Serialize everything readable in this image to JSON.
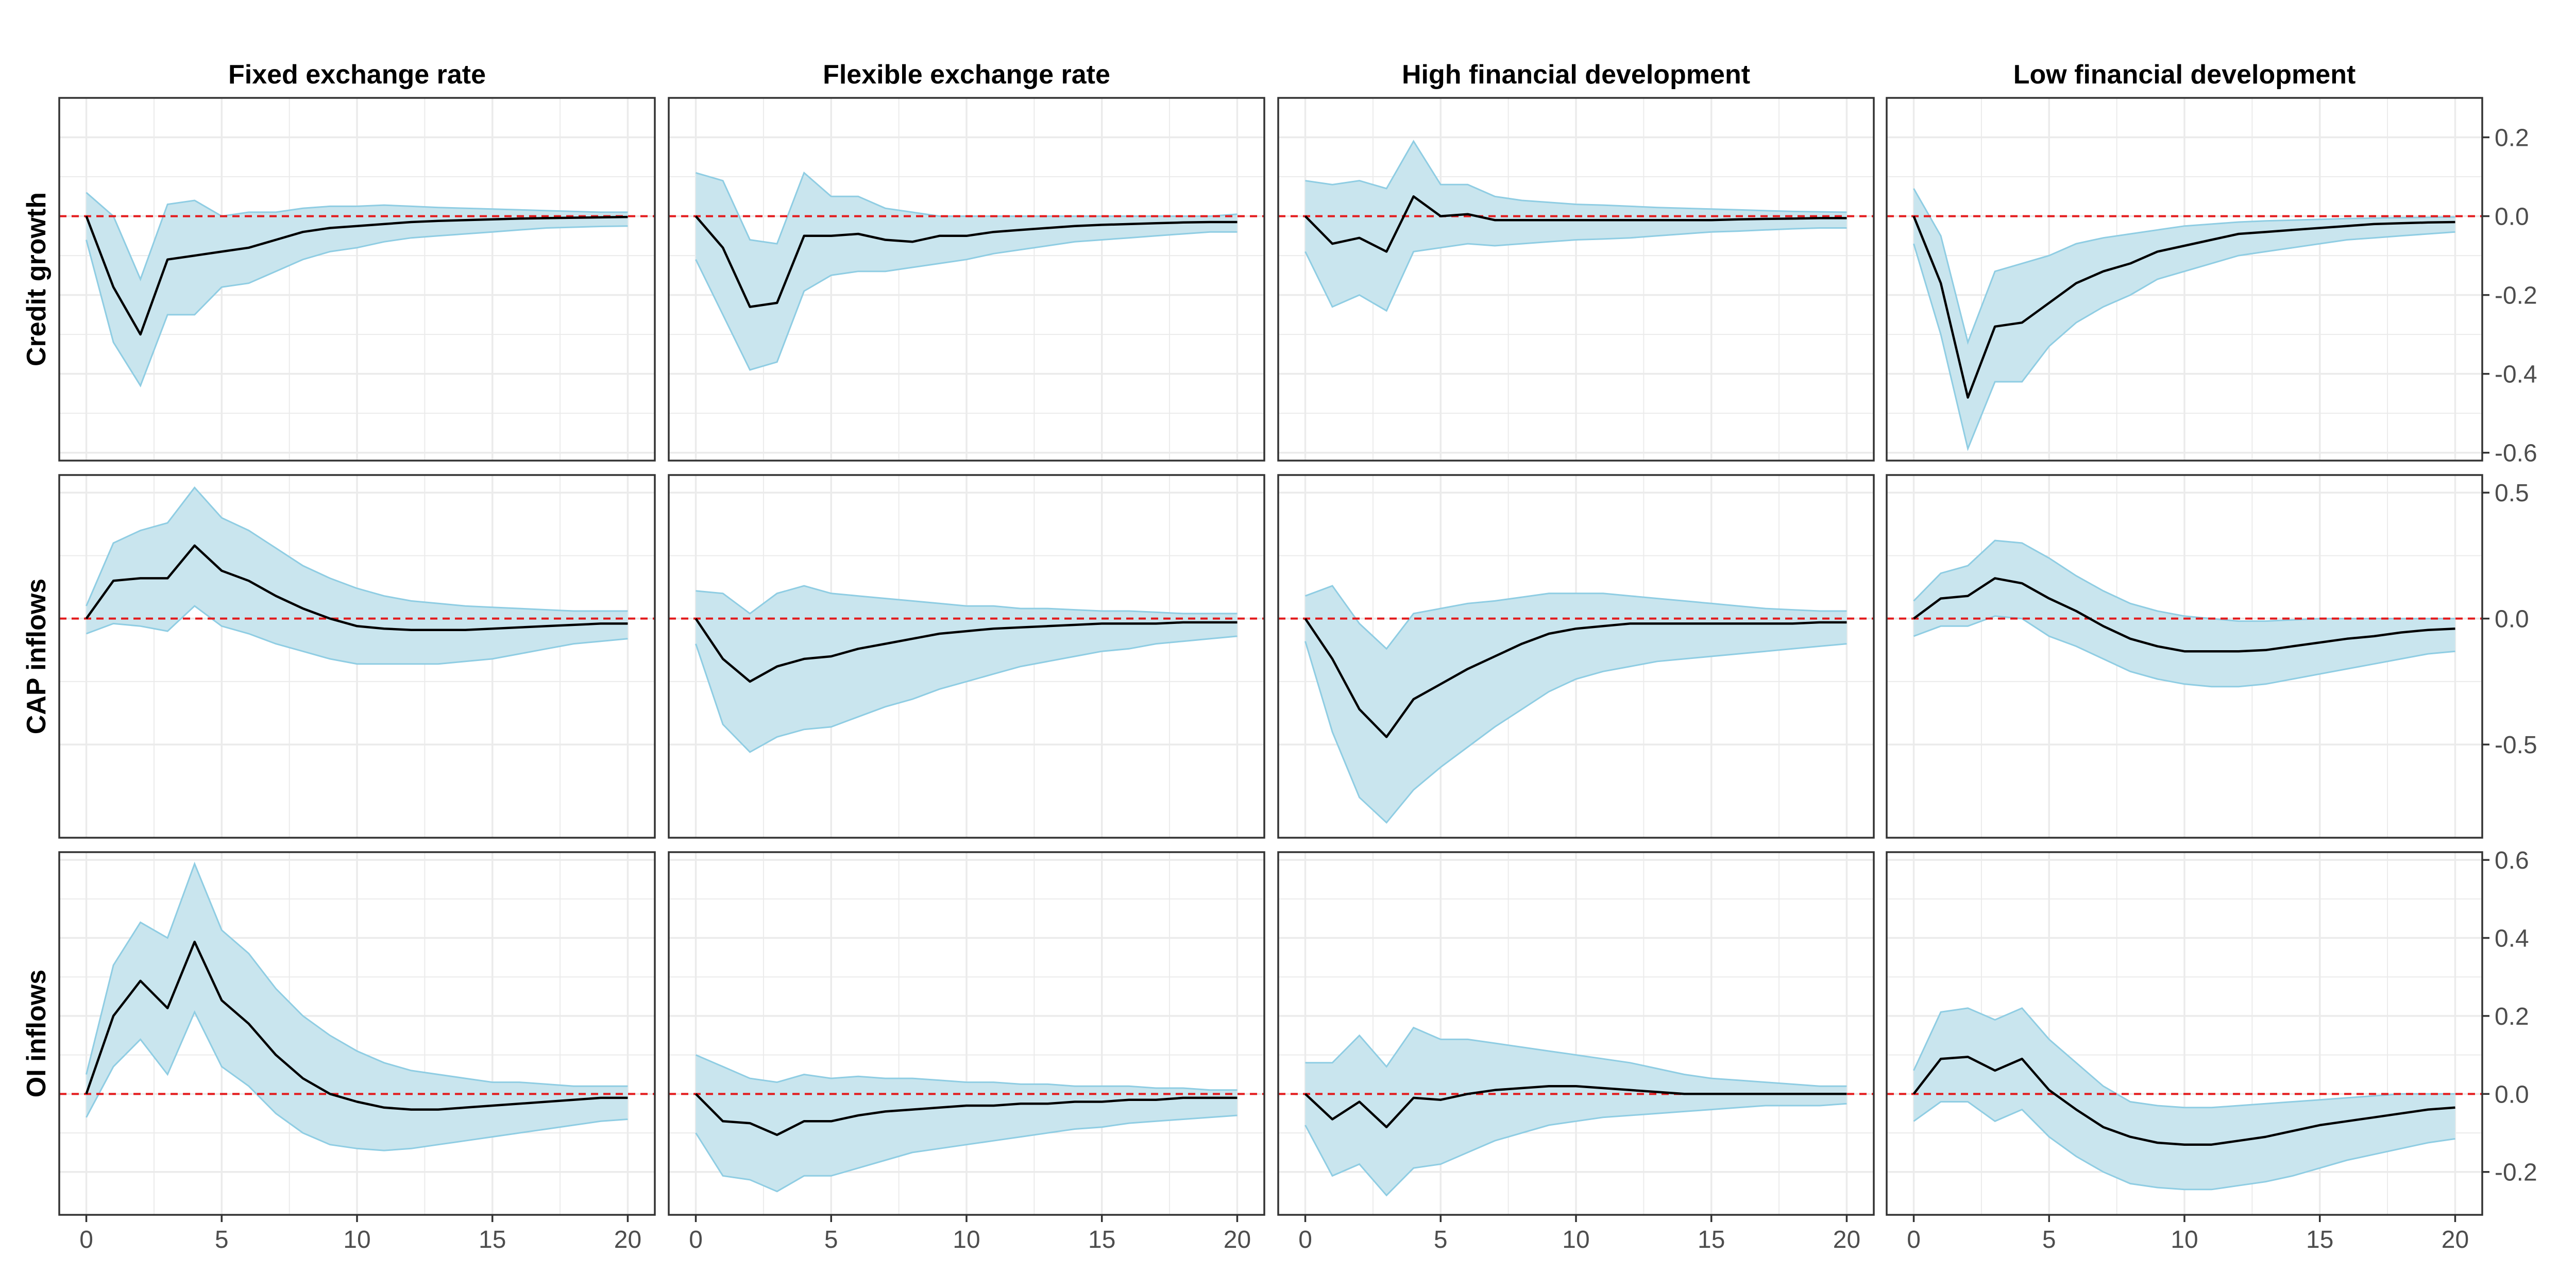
{
  "chart_data": {
    "type": "line",
    "column_titles": [
      "Fixed exchange rate",
      "Flexible exchange rate",
      "High financial development",
      "Low financial development"
    ],
    "row_titles": [
      "Credit growth",
      "CAP inflows",
      "OI inflows"
    ],
    "x_ticks": [
      0,
      5,
      10,
      15,
      20
    ],
    "xlim": [
      -1,
      21
    ],
    "rows": [
      {
        "ylim": [
          -0.62,
          0.3
        ],
        "y_ticks": [
          0.2,
          0.0,
          -0.2,
          -0.4,
          -0.6
        ],
        "y_tick_labels": [
          "0.2",
          "0.0",
          "-0.2",
          "-0.4",
          "-0.6"
        ],
        "panels": [
          {
            "mean": [
              0.0,
              -0.18,
              -0.3,
              -0.11,
              -0.1,
              -0.09,
              -0.08,
              -0.06,
              -0.04,
              -0.03,
              -0.025,
              -0.02,
              -0.015,
              -0.012,
              -0.01,
              -0.008,
              -0.006,
              -0.005,
              -0.004,
              -0.003,
              -0.002
            ],
            "upper": [
              0.06,
              0.0,
              -0.16,
              0.03,
              0.04,
              0.0,
              0.01,
              0.01,
              0.02,
              0.025,
              0.025,
              0.028,
              0.025,
              0.022,
              0.02,
              0.018,
              0.016,
              0.014,
              0.012,
              0.01,
              0.01
            ],
            "lower": [
              -0.06,
              -0.32,
              -0.43,
              -0.25,
              -0.25,
              -0.18,
              -0.17,
              -0.14,
              -0.11,
              -0.09,
              -0.08,
              -0.065,
              -0.055,
              -0.05,
              -0.045,
              -0.04,
              -0.035,
              -0.03,
              -0.028,
              -0.026,
              -0.025
            ]
          },
          {
            "mean": [
              0.0,
              -0.08,
              -0.23,
              -0.22,
              -0.05,
              -0.05,
              -0.045,
              -0.06,
              -0.065,
              -0.05,
              -0.05,
              -0.04,
              -0.035,
              -0.03,
              -0.025,
              -0.022,
              -0.02,
              -0.018,
              -0.016,
              -0.015,
              -0.015
            ],
            "upper": [
              0.11,
              0.09,
              -0.06,
              -0.07,
              0.11,
              0.05,
              0.05,
              0.02,
              0.01,
              0.0,
              0.0,
              0.0,
              0.0,
              0.0,
              0.0,
              0.0,
              0.0,
              0.0,
              0.0,
              0.0,
              0.005
            ],
            "lower": [
              -0.11,
              -0.25,
              -0.39,
              -0.37,
              -0.19,
              -0.15,
              -0.14,
              -0.14,
              -0.13,
              -0.12,
              -0.11,
              -0.095,
              -0.085,
              -0.075,
              -0.065,
              -0.06,
              -0.055,
              -0.05,
              -0.045,
              -0.04,
              -0.04
            ]
          },
          {
            "mean": [
              0.0,
              -0.07,
              -0.055,
              -0.09,
              0.05,
              0.0,
              0.005,
              -0.01,
              -0.01,
              -0.01,
              -0.01,
              -0.01,
              -0.01,
              -0.01,
              -0.01,
              -0.01,
              -0.008,
              -0.007,
              -0.006,
              -0.005,
              -0.005
            ],
            "upper": [
              0.09,
              0.08,
              0.09,
              0.07,
              0.19,
              0.08,
              0.08,
              0.05,
              0.04,
              0.035,
              0.03,
              0.028,
              0.025,
              0.022,
              0.02,
              0.018,
              0.016,
              0.014,
              0.012,
              0.011,
              0.01
            ],
            "lower": [
              -0.09,
              -0.23,
              -0.2,
              -0.24,
              -0.09,
              -0.08,
              -0.07,
              -0.075,
              -0.07,
              -0.065,
              -0.06,
              -0.058,
              -0.055,
              -0.05,
              -0.045,
              -0.04,
              -0.038,
              -0.035,
              -0.032,
              -0.03,
              -0.03
            ]
          },
          {
            "mean": [
              0.0,
              -0.17,
              -0.46,
              -0.28,
              -0.27,
              -0.22,
              -0.17,
              -0.14,
              -0.12,
              -0.09,
              -0.075,
              -0.06,
              -0.045,
              -0.04,
              -0.035,
              -0.03,
              -0.025,
              -0.02,
              -0.018,
              -0.016,
              -0.015
            ],
            "upper": [
              0.07,
              -0.05,
              -0.32,
              -0.14,
              -0.12,
              -0.1,
              -0.07,
              -0.055,
              -0.045,
              -0.035,
              -0.025,
              -0.02,
              -0.015,
              -0.012,
              -0.01,
              -0.008,
              -0.006,
              -0.005,
              -0.004,
              -0.003,
              -0.002
            ],
            "lower": [
              -0.07,
              -0.3,
              -0.59,
              -0.42,
              -0.42,
              -0.33,
              -0.27,
              -0.23,
              -0.2,
              -0.16,
              -0.14,
              -0.12,
              -0.1,
              -0.09,
              -0.08,
              -0.07,
              -0.06,
              -0.055,
              -0.05,
              -0.045,
              -0.04
            ]
          }
        ]
      },
      {
        "ylim": [
          -0.87,
          0.57
        ],
        "y_ticks": [
          0.5,
          0.0,
          -0.5
        ],
        "y_tick_labels": [
          "0.5",
          "0.0",
          "-0.5"
        ],
        "panels": [
          {
            "mean": [
              0.0,
              0.15,
              0.16,
              0.16,
              0.29,
              0.19,
              0.15,
              0.09,
              0.04,
              0.0,
              -0.03,
              -0.04,
              -0.045,
              -0.045,
              -0.045,
              -0.04,
              -0.035,
              -0.03,
              -0.025,
              -0.02,
              -0.02
            ],
            "upper": [
              0.05,
              0.3,
              0.35,
              0.38,
              0.52,
              0.4,
              0.35,
              0.28,
              0.21,
              0.16,
              0.12,
              0.09,
              0.07,
              0.06,
              0.05,
              0.045,
              0.04,
              0.035,
              0.03,
              0.03,
              0.03
            ],
            "lower": [
              -0.06,
              -0.02,
              -0.03,
              -0.05,
              0.05,
              -0.03,
              -0.06,
              -0.1,
              -0.13,
              -0.16,
              -0.18,
              -0.18,
              -0.18,
              -0.18,
              -0.17,
              -0.16,
              -0.14,
              -0.12,
              -0.1,
              -0.09,
              -0.08
            ]
          },
          {
            "mean": [
              0.0,
              -0.16,
              -0.25,
              -0.19,
              -0.16,
              -0.15,
              -0.12,
              -0.1,
              -0.08,
              -0.06,
              -0.05,
              -0.04,
              -0.035,
              -0.03,
              -0.025,
              -0.02,
              -0.02,
              -0.02,
              -0.015,
              -0.015,
              -0.015
            ],
            "upper": [
              0.11,
              0.1,
              0.02,
              0.1,
              0.13,
              0.1,
              0.09,
              0.08,
              0.07,
              0.06,
              0.05,
              0.05,
              0.04,
              0.04,
              0.035,
              0.03,
              0.03,
              0.025,
              0.02,
              0.02,
              0.02
            ],
            "lower": [
              -0.1,
              -0.42,
              -0.53,
              -0.47,
              -0.44,
              -0.43,
              -0.39,
              -0.35,
              -0.32,
              -0.28,
              -0.25,
              -0.22,
              -0.19,
              -0.17,
              -0.15,
              -0.13,
              -0.12,
              -0.1,
              -0.09,
              -0.08,
              -0.07
            ]
          },
          {
            "mean": [
              0.0,
              -0.16,
              -0.36,
              -0.47,
              -0.32,
              -0.26,
              -0.2,
              -0.15,
              -0.1,
              -0.06,
              -0.04,
              -0.03,
              -0.02,
              -0.02,
              -0.02,
              -0.02,
              -0.02,
              -0.02,
              -0.02,
              -0.015,
              -0.015
            ],
            "upper": [
              0.09,
              0.13,
              -0.02,
              -0.12,
              0.02,
              0.04,
              0.06,
              0.07,
              0.085,
              0.1,
              0.1,
              0.1,
              0.09,
              0.08,
              0.07,
              0.06,
              0.05,
              0.04,
              0.035,
              0.03,
              0.03
            ],
            "lower": [
              -0.09,
              -0.45,
              -0.71,
              -0.81,
              -0.68,
              -0.59,
              -0.51,
              -0.43,
              -0.36,
              -0.29,
              -0.24,
              -0.21,
              -0.19,
              -0.17,
              -0.16,
              -0.15,
              -0.14,
              -0.13,
              -0.12,
              -0.11,
              -0.1
            ]
          },
          {
            "mean": [
              0.0,
              0.08,
              0.09,
              0.16,
              0.14,
              0.08,
              0.03,
              -0.03,
              -0.08,
              -0.11,
              -0.13,
              -0.13,
              -0.13,
              -0.125,
              -0.11,
              -0.095,
              -0.08,
              -0.07,
              -0.055,
              -0.045,
              -0.04
            ],
            "upper": [
              0.07,
              0.18,
              0.21,
              0.31,
              0.3,
              0.24,
              0.17,
              0.11,
              0.06,
              0.03,
              0.01,
              0.0,
              -0.01,
              -0.01,
              -0.005,
              0.0,
              0.0,
              0.0,
              0.0,
              0.0,
              0.0
            ],
            "lower": [
              -0.07,
              -0.03,
              -0.03,
              0.01,
              0.0,
              -0.07,
              -0.11,
              -0.16,
              -0.21,
              -0.24,
              -0.26,
              -0.27,
              -0.27,
              -0.26,
              -0.24,
              -0.22,
              -0.2,
              -0.18,
              -0.16,
              -0.14,
              -0.13
            ]
          }
        ]
      },
      {
        "ylim": [
          -0.31,
          0.62
        ],
        "y_ticks": [
          0.6,
          0.4,
          0.2,
          0.0,
          -0.2
        ],
        "y_tick_labels": [
          "0.6",
          "0.4",
          "0.2",
          "0.0",
          "-0.2"
        ],
        "panels": [
          {
            "mean": [
              0.0,
              0.2,
              0.29,
              0.22,
              0.39,
              0.24,
              0.18,
              0.1,
              0.04,
              0.0,
              -0.02,
              -0.035,
              -0.04,
              -0.04,
              -0.035,
              -0.03,
              -0.025,
              -0.02,
              -0.015,
              -0.01,
              -0.01
            ],
            "upper": [
              0.05,
              0.33,
              0.44,
              0.4,
              0.59,
              0.42,
              0.36,
              0.27,
              0.2,
              0.15,
              0.11,
              0.08,
              0.06,
              0.05,
              0.04,
              0.03,
              0.03,
              0.025,
              0.02,
              0.02,
              0.02
            ],
            "lower": [
              -0.06,
              0.07,
              0.14,
              0.05,
              0.21,
              0.07,
              0.02,
              -0.05,
              -0.1,
              -0.13,
              -0.14,
              -0.145,
              -0.14,
              -0.13,
              -0.12,
              -0.11,
              -0.1,
              -0.09,
              -0.08,
              -0.07,
              -0.065
            ]
          },
          {
            "mean": [
              0.0,
              -0.07,
              -0.075,
              -0.105,
              -0.07,
              -0.07,
              -0.055,
              -0.045,
              -0.04,
              -0.035,
              -0.03,
              -0.03,
              -0.025,
              -0.025,
              -0.02,
              -0.02,
              -0.015,
              -0.015,
              -0.01,
              -0.01,
              -0.01
            ],
            "upper": [
              0.1,
              0.07,
              0.04,
              0.03,
              0.05,
              0.04,
              0.045,
              0.04,
              0.04,
              0.035,
              0.03,
              0.03,
              0.025,
              0.025,
              0.02,
              0.02,
              0.02,
              0.015,
              0.015,
              0.01,
              0.01
            ],
            "lower": [
              -0.1,
              -0.21,
              -0.22,
              -0.25,
              -0.21,
              -0.21,
              -0.19,
              -0.17,
              -0.15,
              -0.14,
              -0.13,
              -0.12,
              -0.11,
              -0.1,
              -0.09,
              -0.085,
              -0.075,
              -0.07,
              -0.065,
              -0.06,
              -0.055
            ]
          },
          {
            "mean": [
              0.0,
              -0.065,
              -0.02,
              -0.085,
              -0.01,
              -0.015,
              0.0,
              0.01,
              0.015,
              0.02,
              0.02,
              0.015,
              0.01,
              0.005,
              0.0,
              0.0,
              0.0,
              0.0,
              0.0,
              0.0,
              0.0
            ],
            "upper": [
              0.08,
              0.08,
              0.15,
              0.07,
              0.17,
              0.14,
              0.14,
              0.13,
              0.12,
              0.11,
              0.1,
              0.09,
              0.08,
              0.065,
              0.05,
              0.04,
              0.035,
              0.03,
              0.025,
              0.02,
              0.02
            ],
            "lower": [
              -0.08,
              -0.21,
              -0.18,
              -0.26,
              -0.19,
              -0.18,
              -0.15,
              -0.12,
              -0.1,
              -0.08,
              -0.07,
              -0.06,
              -0.055,
              -0.05,
              -0.045,
              -0.04,
              -0.035,
              -0.03,
              -0.03,
              -0.03,
              -0.025
            ]
          },
          {
            "mean": [
              0.0,
              0.09,
              0.095,
              0.06,
              0.09,
              0.01,
              -0.04,
              -0.085,
              -0.11,
              -0.125,
              -0.13,
              -0.13,
              -0.12,
              -0.11,
              -0.095,
              -0.08,
              -0.07,
              -0.06,
              -0.05,
              -0.04,
              -0.035
            ],
            "upper": [
              0.06,
              0.21,
              0.22,
              0.19,
              0.22,
              0.14,
              0.08,
              0.02,
              -0.02,
              -0.03,
              -0.035,
              -0.035,
              -0.03,
              -0.025,
              -0.02,
              -0.015,
              -0.01,
              -0.005,
              0.0,
              0.0,
              0.0
            ],
            "lower": [
              -0.07,
              -0.02,
              -0.02,
              -0.07,
              -0.04,
              -0.11,
              -0.16,
              -0.2,
              -0.23,
              -0.24,
              -0.245,
              -0.245,
              -0.235,
              -0.225,
              -0.21,
              -0.19,
              -0.17,
              -0.155,
              -0.14,
              -0.125,
              -0.115
            ]
          }
        ]
      }
    ],
    "grid": true,
    "legend": "none",
    "colors": {
      "band_fill": "#c9e5ee",
      "band_edge": "#8fcde3",
      "mean_line": "#000000",
      "zero_line": "#e31a1c",
      "grid": "#ebebeb",
      "panel_border": "#333333",
      "tick_text": "#4d4d4d"
    }
  }
}
